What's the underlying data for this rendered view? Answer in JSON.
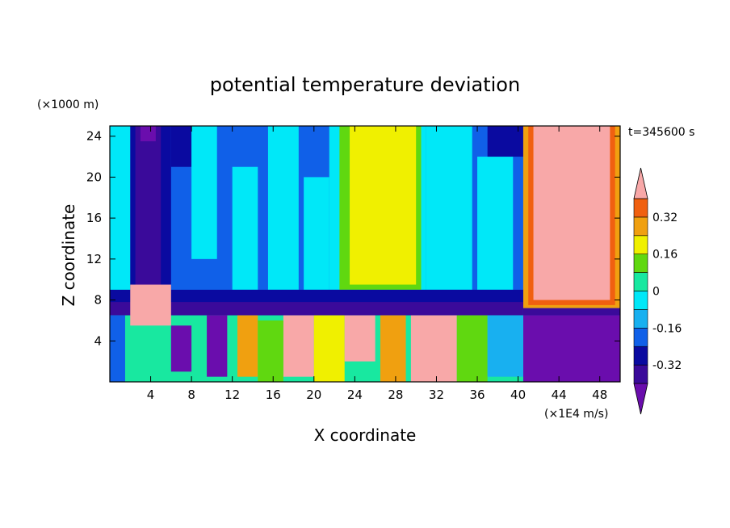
{
  "chart_data": {
    "type": "heatmap",
    "title": "potential temperature deviation",
    "xlabel": "X coordinate",
    "ylabel": "Z coordinate",
    "x_unit": "(×1E4 m/s)",
    "y_unit": "(×1000 m)",
    "time_label": "t=345600 s",
    "xlim": [
      0,
      50
    ],
    "ylim": [
      0,
      25
    ],
    "x_ticks": [
      4,
      8,
      12,
      16,
      20,
      24,
      28,
      32,
      36,
      40,
      44,
      48
    ],
    "y_ticks": [
      4,
      8,
      12,
      16,
      20,
      24
    ],
    "colorbar": {
      "levels": [
        -0.4,
        -0.32,
        -0.24,
        -0.16,
        -0.08,
        0,
        0.08,
        0.16,
        0.24,
        0.32,
        0.4
      ],
      "tick_labels": [
        "-0.32",
        "-0.16",
        "0",
        "0.16",
        "0.32"
      ],
      "tick_values": [
        -0.32,
        -0.16,
        0,
        0.16,
        0.32
      ],
      "colors": [
        "#6a0dad",
        "#3a0a9a",
        "#0a0aa0",
        "#1060e8",
        "#18b0f0",
        "#00e8f8",
        "#18e8a0",
        "#60d810",
        "#f0f000",
        "#f0a010",
        "#f06010",
        "#f02828",
        "#f8a8a8"
      ],
      "extend": "both"
    },
    "bands": [
      {
        "x0": 0,
        "x1": 50,
        "z0": 0,
        "z1": 25,
        "value": -0.18
      },
      {
        "x0": 0,
        "x1": 2.5,
        "z0": 8,
        "z1": 25,
        "value": -0.05
      },
      {
        "x0": 2,
        "x1": 6,
        "z0": 8,
        "z1": 25,
        "value": -0.3
      },
      {
        "x0": 2.5,
        "x1": 5,
        "z0": 8,
        "z1": 25,
        "value": -0.38
      },
      {
        "x0": 3,
        "x1": 4.5,
        "z0": 23.5,
        "z1": 25,
        "value": -0.42
      },
      {
        "x0": 6,
        "x1": 8,
        "z0": 21,
        "z1": 25,
        "value": -0.3
      },
      {
        "x0": 8,
        "x1": 10.5,
        "z0": 12,
        "z1": 25,
        "value": -0.07
      },
      {
        "x0": 12,
        "x1": 14.5,
        "z0": 9,
        "z1": 21,
        "value": -0.07
      },
      {
        "x0": 15.5,
        "x1": 18.5,
        "z0": 9,
        "z1": 25,
        "value": -0.07
      },
      {
        "x0": 19,
        "x1": 21.5,
        "z0": 9,
        "z1": 20,
        "value": -0.07
      },
      {
        "x0": 21.5,
        "x1": 31,
        "z0": 9,
        "z1": 25,
        "value": -0.02
      },
      {
        "x0": 22.5,
        "x1": 30.5,
        "z0": 9,
        "z1": 25,
        "value": 0.1
      },
      {
        "x0": 23.5,
        "x1": 30,
        "z0": 9.5,
        "z1": 25,
        "value": 0.18
      },
      {
        "x0": 26.5,
        "x1": 29.5,
        "z0": 10,
        "z1": 25,
        "value": 0.22
      },
      {
        "x0": 31,
        "x1": 35.5,
        "z0": 9,
        "z1": 25,
        "value": -0.07
      },
      {
        "x0": 36,
        "x1": 39.5,
        "z0": 9,
        "z1": 22,
        "value": -0.07
      },
      {
        "x0": 37,
        "x1": 41,
        "z0": 22,
        "z1": 25,
        "value": -0.3
      },
      {
        "x0": 40.5,
        "x1": 50,
        "z0": 7.2,
        "z1": 25,
        "value": 0.26
      },
      {
        "x0": 41,
        "x1": 49.5,
        "z0": 7.5,
        "z1": 25,
        "value": 0.34
      },
      {
        "x0": 41.5,
        "x1": 49,
        "z0": 8,
        "z1": 25,
        "value": 0.42
      },
      {
        "x0": 0,
        "x1": 40.5,
        "z0": 7.5,
        "z1": 9,
        "value": -0.3
      },
      {
        "x0": 0,
        "x1": 40.5,
        "z0": 6.5,
        "z1": 7.8,
        "value": -0.4
      },
      {
        "x0": 40.5,
        "x1": 50,
        "z0": 6.5,
        "z1": 7.2,
        "value": -0.4
      },
      {
        "x0": 40.5,
        "x1": 50,
        "z0": 0,
        "z1": 6.5,
        "value": -0.42
      },
      {
        "x0": 0,
        "x1": 40.5,
        "z0": 0,
        "z1": 6.5,
        "value": 0.05
      },
      {
        "x0": 2,
        "x1": 6,
        "z0": 5.5,
        "z1": 9.5,
        "value": 0.42
      },
      {
        "x0": 6,
        "x1": 8,
        "z0": 1,
        "z1": 5.5,
        "value": -0.42
      },
      {
        "x0": 9.5,
        "x1": 11.5,
        "z0": 0.5,
        "z1": 6.5,
        "value": -0.42
      },
      {
        "x0": 17,
        "x1": 20,
        "z0": 0.5,
        "z1": 6.5,
        "value": 0.42
      },
      {
        "x0": 20,
        "x1": 23,
        "z0": 0,
        "z1": 6.5,
        "value": 0.2
      },
      {
        "x0": 23,
        "x1": 26,
        "z0": 2,
        "z1": 6.5,
        "value": 0.42
      },
      {
        "x0": 26.5,
        "x1": 29,
        "z0": 0,
        "z1": 6.5,
        "value": 0.3
      },
      {
        "x0": 29.5,
        "x1": 34,
        "z0": 0,
        "z1": 6.5,
        "value": 0.42
      },
      {
        "x0": 34,
        "x1": 37,
        "z0": 0,
        "z1": 6.5,
        "value": 0.15
      },
      {
        "x0": 37,
        "x1": 40.5,
        "z0": 0.5,
        "z1": 6.5,
        "value": -0.1
      },
      {
        "x0": 0,
        "x1": 1.5,
        "z0": 0,
        "z1": 6.5,
        "value": -0.18
      },
      {
        "x0": 12.5,
        "x1": 14.5,
        "z0": 0.5,
        "z1": 6.5,
        "value": 0.3
      },
      {
        "x0": 14.5,
        "x1": 17,
        "z0": 0,
        "z1": 6,
        "value": 0.08
      }
    ]
  }
}
